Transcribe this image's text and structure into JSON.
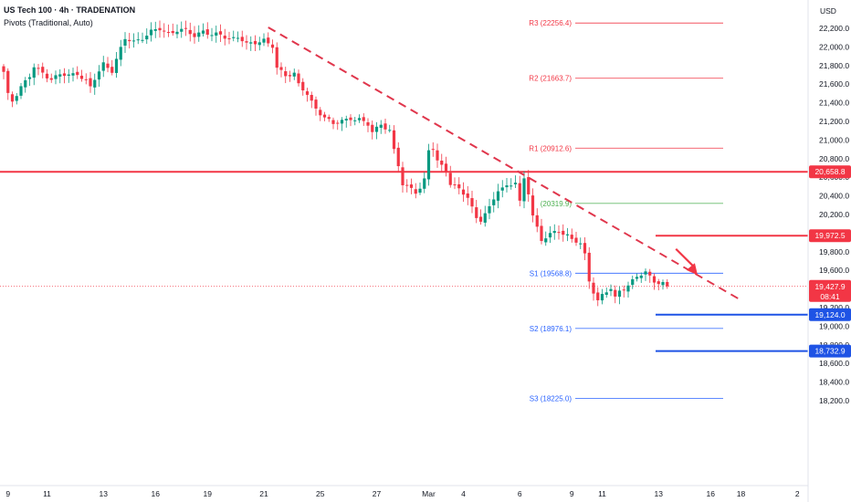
{
  "header": {
    "title": "US Tech 100 · 4h · TRADENATION",
    "subtitle": "Pivots (Traditional, Auto)"
  },
  "currency": "USD",
  "chart_data": {
    "type": "candlestick",
    "title": "US Tech 100 · 4h · TRADENATION",
    "ylim": [
      18100,
      22450
    ],
    "y_ticks": [
      18200,
      18400,
      18600,
      18800,
      19000,
      19200,
      19400,
      19600,
      19800,
      20000,
      20200,
      20400,
      20600,
      20800,
      21000,
      21200,
      21400,
      21600,
      21800,
      22000,
      22200
    ],
    "y_tick_labels": [
      "18,200.0",
      "18,400.0",
      "18,600.0",
      "18,800.0",
      "19,000.0",
      "19,200.0",
      "19,400.0",
      "19,600.0",
      "19,800.0",
      "20,000.0",
      "20,200.0",
      "20,400.0",
      "20,600.0",
      "20,800.0",
      "21,000.0",
      "21,200.0",
      "21,400.0",
      "21,600.0",
      "21,800.0",
      "22,000.0",
      "22,200.0"
    ],
    "x_ticks": [
      {
        "label": "9",
        "bar": 1
      },
      {
        "label": "11",
        "bar": 10
      },
      {
        "label": "13",
        "bar": 23
      },
      {
        "label": "16",
        "bar": 35
      },
      {
        "label": "19",
        "bar": 47
      },
      {
        "label": "21",
        "bar": 60
      },
      {
        "label": "25",
        "bar": 73
      },
      {
        "label": "27",
        "bar": 86
      },
      {
        "label": "Mar",
        "bar": 98
      },
      {
        "label": "4",
        "bar": 106
      },
      {
        "label": "6",
        "bar": 119
      },
      {
        "label": "9",
        "bar": 131
      },
      {
        "label": "11",
        "bar": 138
      },
      {
        "label": "13",
        "bar": 151
      },
      {
        "label": "16",
        "bar": 163
      },
      {
        "label": "18",
        "bar": 170
      },
      {
        "label": "2",
        "bar": 183
      }
    ],
    "bar_count_span": 185,
    "anchors": [
      [
        0,
        21720
      ],
      [
        1,
        21480
      ],
      [
        2,
        21420
      ],
      [
        4,
        21580
      ],
      [
        6,
        21680
      ],
      [
        7,
        21780
      ],
      [
        9,
        21720
      ],
      [
        11,
        21660
      ],
      [
        13,
        21700
      ],
      [
        15,
        21690
      ],
      [
        17,
        21720
      ],
      [
        19,
        21640
      ],
      [
        20,
        21560
      ],
      [
        21,
        21650
      ],
      [
        23,
        21820
      ],
      [
        25,
        21750
      ],
      [
        26,
        21870
      ],
      [
        28,
        22080
      ],
      [
        30,
        22060
      ],
      [
        32,
        22100
      ],
      [
        34,
        22160
      ],
      [
        36,
        22190
      ],
      [
        38,
        22150
      ],
      [
        40,
        22180
      ],
      [
        42,
        22170
      ],
      [
        44,
        22120
      ],
      [
        46,
        22180
      ],
      [
        48,
        22120
      ],
      [
        50,
        22130
      ],
      [
        52,
        22090
      ],
      [
        54,
        22110
      ],
      [
        56,
        22020
      ],
      [
        58,
        22050
      ],
      [
        60,
        22080
      ],
      [
        62,
        22000
      ],
      [
        63,
        21760
      ],
      [
        65,
        21700
      ],
      [
        67,
        21720
      ],
      [
        68,
        21600
      ],
      [
        70,
        21480
      ],
      [
        71,
        21400
      ],
      [
        72,
        21340
      ],
      [
        74,
        21250
      ],
      [
        76,
        21170
      ],
      [
        78,
        21200
      ],
      [
        80,
        21240
      ],
      [
        82,
        21220
      ],
      [
        84,
        21160
      ],
      [
        85,
        21080
      ],
      [
        87,
        21180
      ],
      [
        89,
        21100
      ],
      [
        90,
        20880
      ],
      [
        91,
        20720
      ],
      [
        92,
        20520
      ],
      [
        94,
        20490
      ],
      [
        95,
        20450
      ],
      [
        96,
        20480
      ],
      [
        97,
        20560
      ],
      [
        98,
        20880
      ],
      [
        99,
        20910
      ],
      [
        100,
        20780
      ],
      [
        102,
        20680
      ],
      [
        103,
        20530
      ],
      [
        105,
        20460
      ],
      [
        107,
        20390
      ],
      [
        109,
        20170
      ],
      [
        110,
        20140
      ],
      [
        112,
        20260
      ],
      [
        114,
        20470
      ],
      [
        116,
        20510
      ],
      [
        118,
        20540
      ],
      [
        119,
        20320
      ],
      [
        120,
        20580
      ],
      [
        121,
        20440
      ],
      [
        122,
        20200
      ],
      [
        124,
        19920
      ],
      [
        126,
        19980
      ],
      [
        128,
        20030
      ],
      [
        130,
        19980
      ],
      [
        131,
        19930
      ],
      [
        133,
        19880
      ],
      [
        134,
        19760
      ],
      [
        135,
        19490
      ],
      [
        136,
        19380
      ],
      [
        137,
        19280
      ],
      [
        138,
        19330
      ],
      [
        140,
        19400
      ],
      [
        141,
        19300
      ],
      [
        142,
        19380
      ],
      [
        144,
        19450
      ],
      [
        146,
        19520
      ],
      [
        148,
        19580
      ],
      [
        150,
        19490
      ],
      [
        152,
        19460
      ],
      [
        153,
        19427.9
      ]
    ],
    "last_price": 19427.9,
    "last_price_label": "19,427.9",
    "countdown": "08:41",
    "pivots": [
      {
        "name": "R3",
        "value": 22256.4,
        "label": "R3 (22256.4)",
        "color": "#f23645"
      },
      {
        "name": "R2",
        "value": 21663.7,
        "label": "R2 (21663.7)",
        "color": "#f23645"
      },
      {
        "name": "R1",
        "value": 20912.6,
        "label": "R1 (20912.6)",
        "color": "#f23645"
      },
      {
        "name": "P",
        "value": 20319.9,
        "label": "(20319.9)",
        "color": "#4caf50"
      },
      {
        "name": "S1",
        "value": 19568.8,
        "label": "S1 (19568.8)",
        "color": "#2962ff"
      },
      {
        "name": "S2",
        "value": 18976.1,
        "label": "S2 (18976.1)",
        "color": "#2962ff"
      },
      {
        "name": "S3",
        "value": 18225.0,
        "label": "S3 (18225.0)",
        "color": "#2962ff"
      }
    ],
    "horizontal_levels": [
      {
        "value": 20658.8,
        "label": "20,658.8",
        "color": "#f23645"
      },
      {
        "value": 19972.5,
        "label": "19,972.5",
        "color": "#f23645"
      },
      {
        "value": 19124.0,
        "label": "19,124.0",
        "color": "#1e53e5"
      },
      {
        "value": 18732.9,
        "label": "18,732.9",
        "color": "#1e53e5"
      }
    ],
    "trendline": {
      "from": [
        61,
        22210
      ],
      "to": [
        170,
        19280
      ],
      "color": "#e0364c",
      "style": "dashed"
    },
    "arrow": {
      "from": [
        155,
        19830
      ],
      "to": [
        160,
        19550
      ],
      "color": "#f23645"
    },
    "colors": {
      "up": "#089981",
      "down": "#f23645",
      "wick_up": "#089981",
      "wick_down": "#f23645"
    }
  }
}
